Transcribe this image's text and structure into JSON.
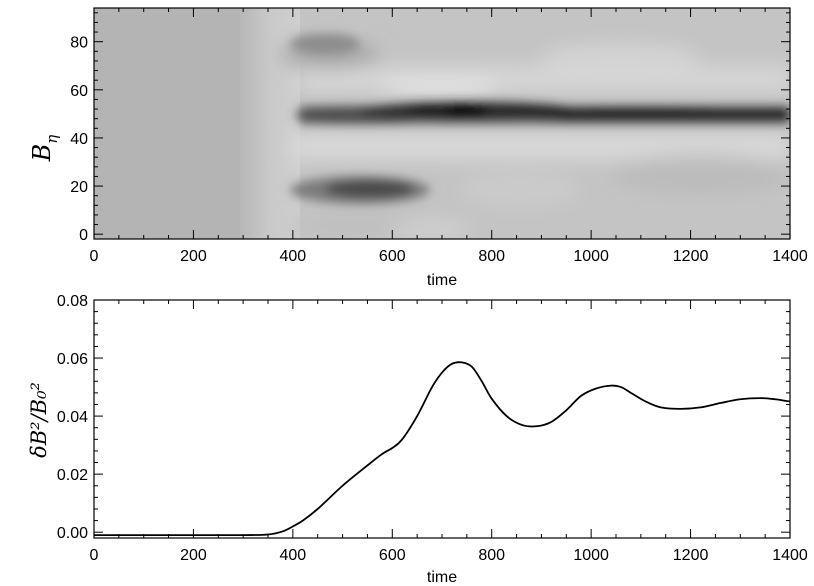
{
  "chart_data": [
    {
      "type": "heatmap",
      "ylabel_base": "B",
      "ylabel_sub": "η",
      "xlabel": "time",
      "xlim": [
        0,
        1400
      ],
      "ylim": [
        -2,
        94
      ],
      "xticks": [
        "0",
        "200",
        "400",
        "600",
        "800",
        "1000",
        "1200",
        "1400"
      ],
      "yticks": [
        "0",
        "20",
        "40",
        "60",
        "80"
      ],
      "features": [
        {
          "x": [
            460,
            1400
          ],
          "y": 51,
          "level": "dark band (peak near t=700-800)"
        },
        {
          "x": [
            420,
            620
          ],
          "y": 18,
          "level": "medium-dark blob"
        },
        {
          "x": [
            380,
            1400
          ],
          "y": [
            60,
            70
          ],
          "level": "light band"
        },
        {
          "x": [
            380,
            1400
          ],
          "y": [
            30,
            40
          ],
          "level": "light band"
        }
      ]
    },
    {
      "type": "line",
      "ylabel": "δB²/B₀²",
      "xlabel": "time",
      "xlim": [
        0,
        1400
      ],
      "ylim": [
        -0.002,
        0.08
      ],
      "xticks": [
        "0",
        "200",
        "400",
        "600",
        "800",
        "1000",
        "1200",
        "1400"
      ],
      "yticks": [
        "0.00",
        "0.02",
        "0.04",
        "0.06",
        "0.08"
      ],
      "series": [
        {
          "x": [
            0,
            200,
            300,
            350,
            380,
            400,
            420,
            450,
            500,
            550,
            580,
            600,
            620,
            650,
            680,
            700,
            720,
            740,
            760,
            780,
            800,
            830,
            860,
            890,
            920,
            950,
            980,
            1010,
            1040,
            1060,
            1080,
            1110,
            1140,
            1180,
            1220,
            1260,
            1300,
            1340,
            1370,
            1400
          ],
          "values": [
            -0.001,
            -0.001,
            -0.001,
            -0.0008,
            0.0003,
            0.002,
            0.004,
            0.008,
            0.016,
            0.023,
            0.027,
            0.029,
            0.032,
            0.04,
            0.05,
            0.055,
            0.058,
            0.0585,
            0.057,
            0.052,
            0.046,
            0.04,
            0.037,
            0.0365,
            0.038,
            0.042,
            0.047,
            0.0495,
            0.0505,
            0.05,
            0.048,
            0.045,
            0.043,
            0.0425,
            0.043,
            0.0445,
            0.0458,
            0.0462,
            0.0458,
            0.045
          ]
        }
      ]
    }
  ]
}
